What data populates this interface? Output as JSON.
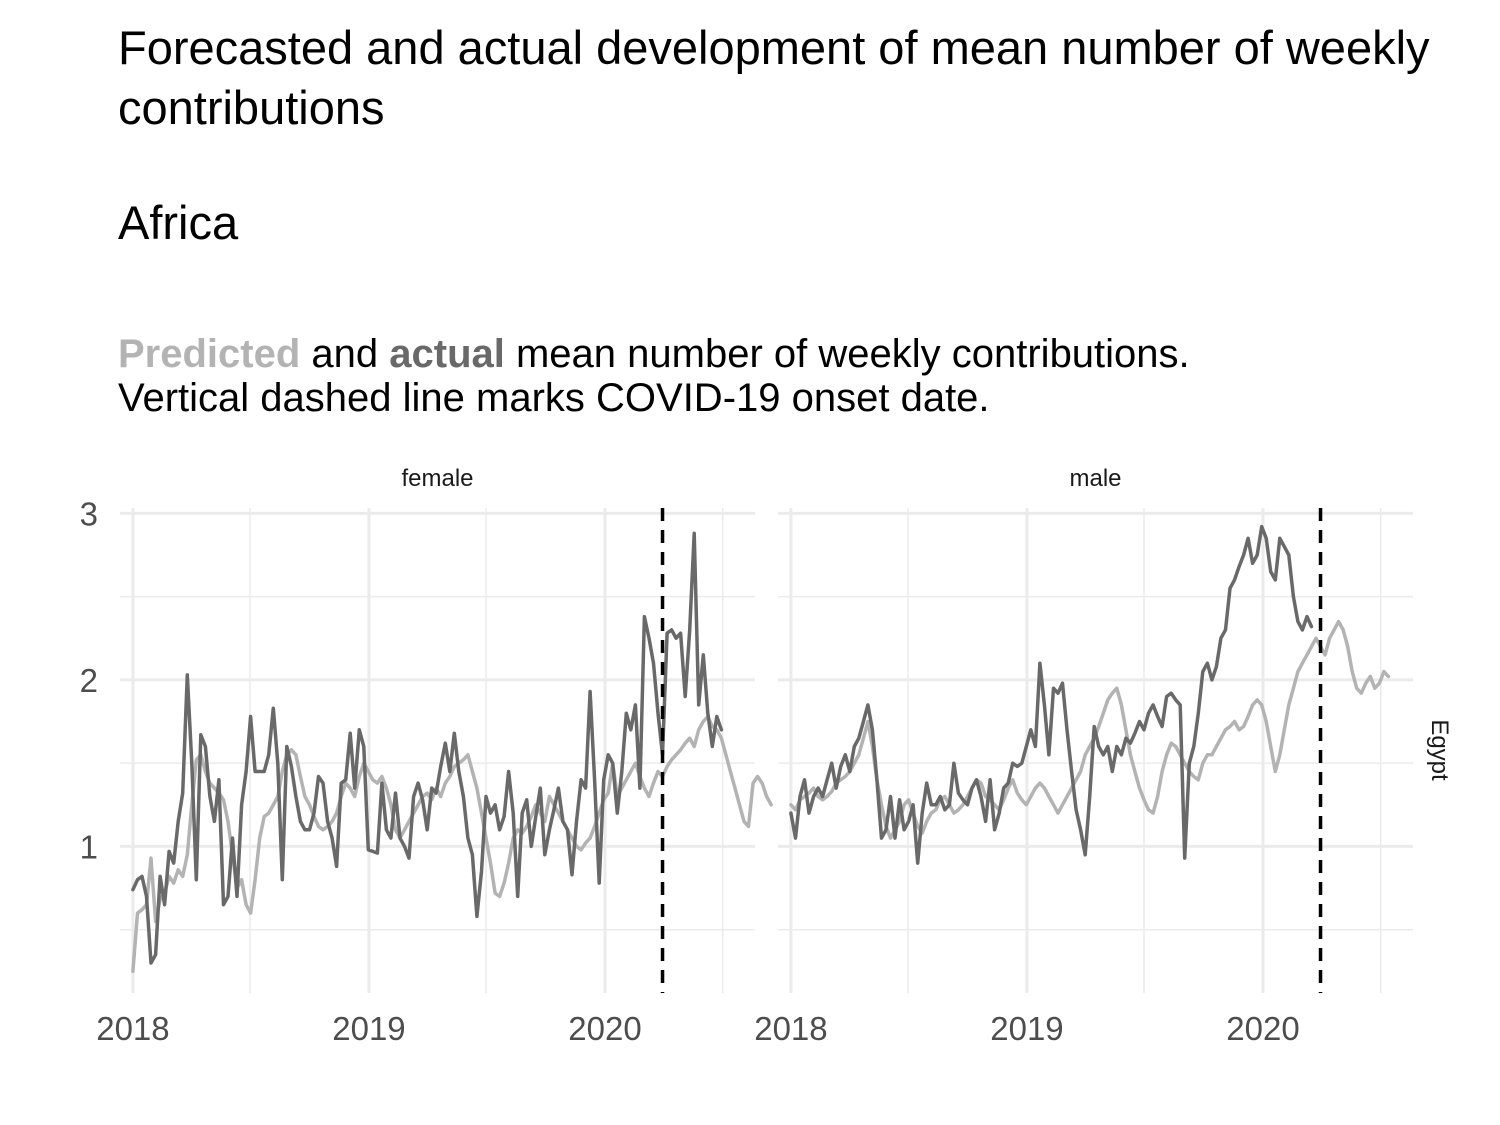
{
  "title": "Forecasted and actual development of mean number of weekly contributions",
  "region": "Africa",
  "subtitle": {
    "predicted_word": "Predicted",
    "and_word": " and ",
    "actual_word": "actual",
    "line1_rest": " mean number of weekly contributions.",
    "line2": "Vertical dashed line marks COVID-19 onset date."
  },
  "colors": {
    "predicted": "#b3b3b3",
    "actual": "#696969",
    "grid": "#ebebeb",
    "onset": "#000000"
  },
  "chart_data": {
    "type": "line",
    "row_label": "Egypt",
    "x_ticks": [
      "2018",
      "2019",
      "2020"
    ],
    "y_ticks": [
      1,
      2,
      3
    ],
    "xlim": [
      "2017-12-12",
      "2020-08-20"
    ],
    "ylim": [
      0.12,
      3.08
    ],
    "covid_onset": "2020-03-30",
    "panels": [
      {
        "label": "female",
        "series": [
          {
            "key": "predicted",
            "start": "2018-01-01",
            "values": [
              0.25,
              0.6,
              0.62,
              0.65,
              0.93,
              0.55,
              0.68,
              0.72,
              0.82,
              0.78,
              0.86,
              0.82,
              0.95,
              1.25,
              1.52,
              1.55,
              1.45,
              1.38,
              1.35,
              1.32,
              1.28,
              1.15,
              0.95,
              0.75,
              0.8,
              0.65,
              0.6,
              0.8,
              1.05,
              1.18,
              1.2,
              1.25,
              1.3,
              1.45,
              1.55,
              1.58,
              1.55,
              1.42,
              1.3,
              1.25,
              1.18,
              1.12,
              1.1,
              1.12,
              1.15,
              1.2,
              1.3,
              1.38,
              1.35,
              1.3,
              1.42,
              1.5,
              1.45,
              1.4,
              1.38,
              1.42,
              1.35,
              1.25,
              1.1,
              1.05,
              1.1,
              1.15,
              1.2,
              1.25,
              1.3,
              1.32,
              1.28,
              1.35,
              1.3,
              1.38,
              1.42,
              1.48,
              1.5,
              1.52,
              1.55,
              1.45,
              1.35,
              1.2,
              1.05,
              0.9,
              0.72,
              0.7,
              0.78,
              0.9,
              1.05,
              1.1,
              1.08,
              1.12,
              1.18,
              1.25,
              1.2,
              1.15,
              1.3,
              1.25,
              1.2,
              1.15,
              1.1,
              1.05,
              1.0,
              0.98,
              1.02,
              1.05,
              1.12,
              1.2,
              1.28,
              1.32,
              1.5,
              1.3,
              1.35,
              1.4,
              1.45,
              1.5,
              1.42,
              1.35,
              1.3,
              1.38,
              1.45,
              1.42,
              1.48,
              1.52,
              1.55,
              1.58,
              1.62,
              1.65,
              1.6,
              1.7,
              1.75,
              1.78,
              1.72,
              1.7,
              1.65,
              1.55,
              1.45,
              1.35,
              1.25,
              1.15,
              1.12,
              1.38,
              1.42,
              1.38,
              1.3,
              1.25
            ]
          },
          {
            "key": "actual",
            "start": "2018-01-01",
            "values": [
              0.74,
              0.8,
              0.82,
              0.7,
              0.3,
              0.35,
              0.82,
              0.65,
              0.97,
              0.9,
              1.15,
              1.32,
              2.03,
              1.5,
              0.8,
              1.67,
              1.6,
              1.3,
              1.15,
              1.4,
              0.65,
              0.7,
              1.05,
              0.7,
              1.25,
              1.45,
              1.78,
              1.45,
              1.45,
              1.45,
              1.55,
              1.83,
              1.5,
              0.8,
              1.6,
              1.48,
              1.3,
              1.15,
              1.1,
              1.1,
              1.2,
              1.42,
              1.38,
              1.15,
              1.05,
              0.88,
              1.38,
              1.4,
              1.68,
              1.35,
              1.7,
              1.6,
              0.98,
              0.97,
              0.96,
              1.38,
              1.1,
              1.05,
              1.32,
              1.05,
              1.0,
              0.93,
              1.3,
              1.38,
              1.28,
              1.1,
              1.35,
              1.32,
              1.48,
              1.62,
              1.45,
              1.68,
              1.45,
              1.3,
              1.05,
              0.95,
              0.58,
              0.85,
              1.3,
              1.2,
              1.25,
              1.1,
              1.18,
              1.45,
              1.2,
              0.7,
              1.2,
              1.28,
              1.0,
              1.18,
              1.35,
              0.95,
              1.1,
              1.22,
              1.35,
              1.15,
              1.1,
              0.83,
              1.15,
              1.4,
              1.35,
              1.93,
              1.4,
              0.78,
              1.4,
              1.55,
              1.5,
              1.2,
              1.45,
              1.8,
              1.7,
              1.85,
              1.35,
              2.38,
              2.25,
              2.1,
              1.8,
              1.55,
              2.28,
              2.3,
              2.25,
              2.28,
              1.9,
              2.3,
              2.88,
              1.85,
              2.15,
              1.8,
              1.6,
              1.78,
              1.7
            ]
          }
        ]
      },
      {
        "label": "male",
        "series": [
          {
            "key": "predicted",
            "start": "2018-01-01",
            "values": [
              1.25,
              1.22,
              1.28,
              1.3,
              1.32,
              1.35,
              1.3,
              1.28,
              1.3,
              1.33,
              1.38,
              1.4,
              1.42,
              1.45,
              1.5,
              1.55,
              1.65,
              1.75,
              1.6,
              1.4,
              1.25,
              1.12,
              1.05,
              1.1,
              1.15,
              1.25,
              1.28,
              1.2,
              1.12,
              1.08,
              1.15,
              1.2,
              1.22,
              1.28,
              1.3,
              1.25,
              1.2,
              1.22,
              1.25,
              1.3,
              1.35,
              1.4,
              1.38,
              1.3,
              1.28,
              1.25,
              1.22,
              1.28,
              1.35,
              1.4,
              1.32,
              1.28,
              1.25,
              1.3,
              1.35,
              1.38,
              1.35,
              1.3,
              1.25,
              1.2,
              1.25,
              1.3,
              1.35,
              1.4,
              1.45,
              1.55,
              1.6,
              1.65,
              1.72,
              1.8,
              1.88,
              1.92,
              1.95,
              1.85,
              1.7,
              1.55,
              1.45,
              1.35,
              1.28,
              1.22,
              1.2,
              1.3,
              1.45,
              1.55,
              1.62,
              1.6,
              1.55,
              1.5,
              1.45,
              1.42,
              1.4,
              1.5,
              1.55,
              1.55,
              1.6,
              1.65,
              1.7,
              1.72,
              1.75,
              1.7,
              1.72,
              1.78,
              1.85,
              1.88,
              1.85,
              1.75,
              1.6,
              1.45,
              1.55,
              1.7,
              1.85,
              1.95,
              2.05,
              2.1,
              2.15,
              2.2,
              2.25,
              2.2,
              2.15,
              2.25,
              2.3,
              2.35,
              2.3,
              2.2,
              2.05,
              1.95,
              1.92,
              1.98,
              2.02,
              1.95,
              1.98,
              2.05,
              2.02
            ]
          },
          {
            "key": "actual",
            "start": "2018-01-01",
            "values": [
              1.2,
              1.05,
              1.3,
              1.4,
              1.2,
              1.3,
              1.35,
              1.3,
              1.4,
              1.5,
              1.35,
              1.48,
              1.55,
              1.45,
              1.6,
              1.65,
              1.75,
              1.85,
              1.7,
              1.4,
              1.05,
              1.1,
              1.3,
              1.05,
              1.28,
              1.1,
              1.15,
              1.25,
              0.9,
              1.2,
              1.38,
              1.25,
              1.25,
              1.3,
              1.22,
              1.25,
              1.5,
              1.32,
              1.28,
              1.25,
              1.35,
              1.4,
              1.3,
              1.15,
              1.4,
              1.1,
              1.2,
              1.35,
              1.38,
              1.5,
              1.48,
              1.5,
              1.6,
              1.7,
              1.6,
              2.1,
              1.85,
              1.55,
              1.95,
              1.92,
              1.98,
              1.7,
              1.45,
              1.22,
              1.1,
              0.95,
              1.3,
              1.72,
              1.6,
              1.55,
              1.6,
              1.45,
              1.6,
              1.55,
              1.65,
              1.62,
              1.68,
              1.75,
              1.7,
              1.8,
              1.85,
              1.78,
              1.72,
              1.9,
              1.92,
              1.88,
              1.85,
              0.93,
              1.5,
              1.6,
              1.8,
              2.05,
              2.1,
              2.0,
              2.08,
              2.25,
              2.3,
              2.55,
              2.6,
              2.68,
              2.75,
              2.85,
              2.7,
              2.75,
              2.92,
              2.85,
              2.65,
              2.6,
              2.85,
              2.8,
              2.75,
              2.5,
              2.35,
              2.3,
              2.38,
              2.32
            ]
          }
        ]
      }
    ]
  }
}
